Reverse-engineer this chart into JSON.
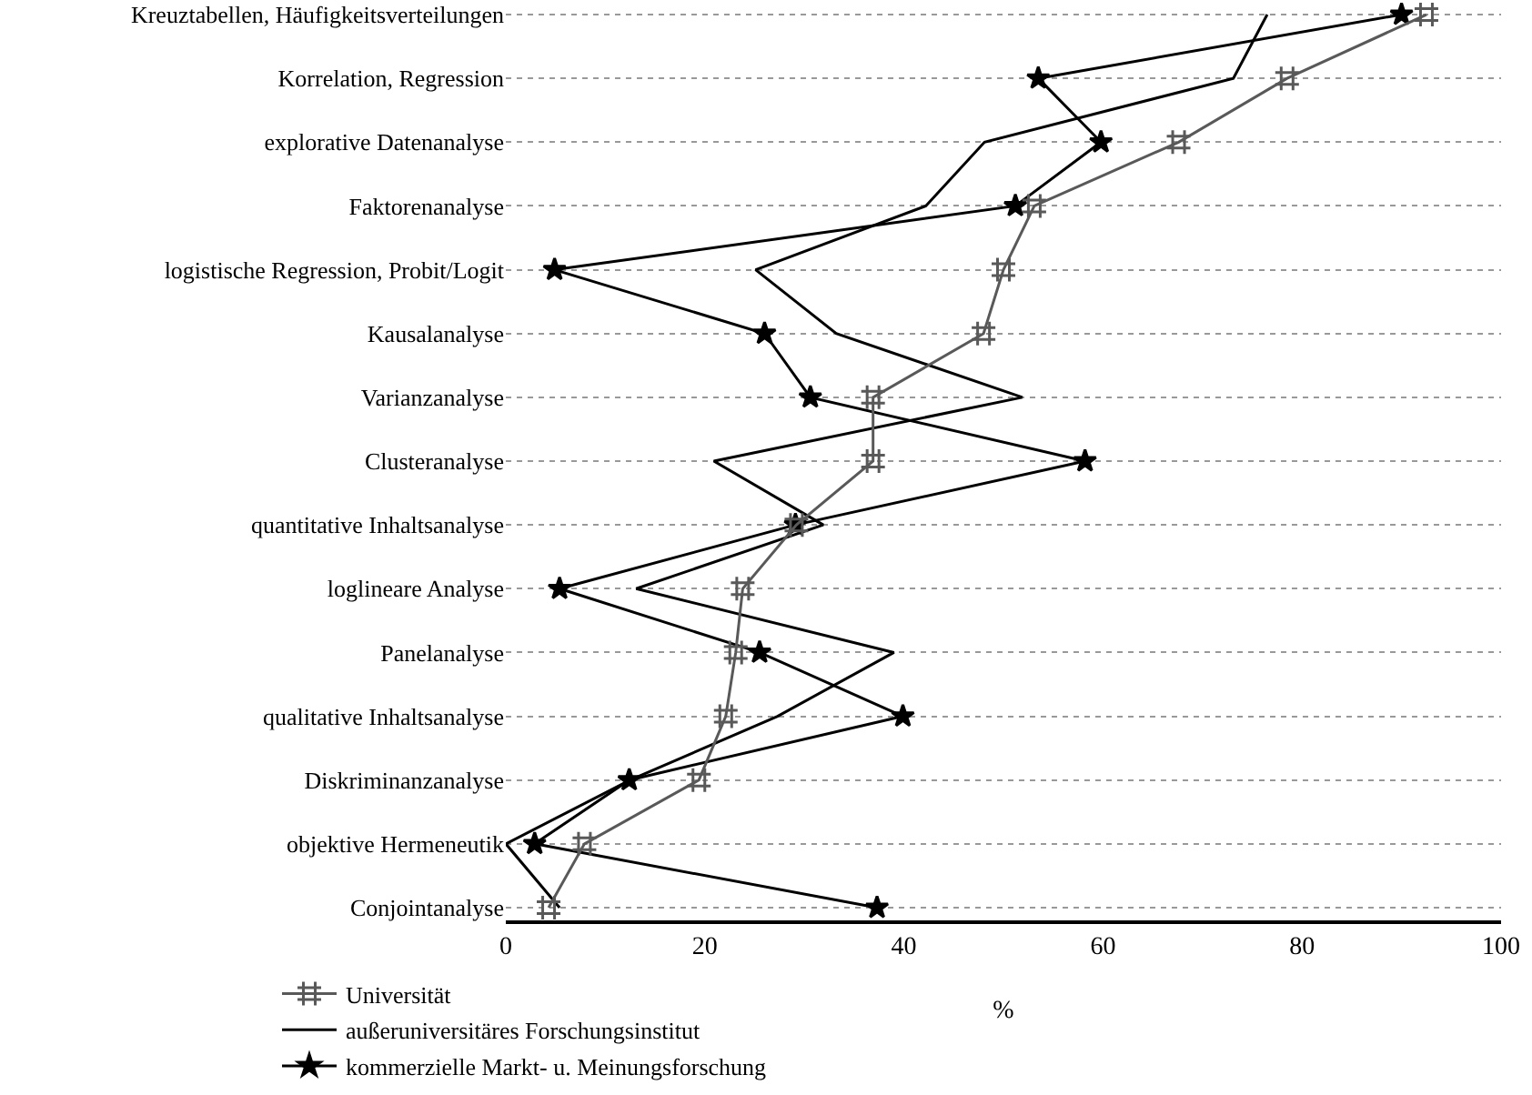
{
  "chart_data": {
    "type": "line",
    "orientation": "horizontal",
    "xlabel": "%",
    "categories": [
      "Kreuztabellen, Häufigkeitsverteilungen",
      "Korrelation, Regression",
      "explorative Datenanalyse",
      "Faktorenanalyse",
      "logistische Regression, Probit/Logit",
      "Kausalanalyse",
      "Varianzanalyse",
      "Clusteranalyse",
      "quantitative Inhaltsanalyse",
      "loglineare Analyse",
      "Panelanalyse",
      "qualitative Inhaltsanalyse",
      "Diskriminanzanalyse",
      "objektive Hermeneutik",
      "Conjointanalyse"
    ],
    "series": [
      {
        "name": "Universität",
        "color": "#595959",
        "marker": "cross",
        "values": [
          92.5,
          78.5,
          67.6,
          53.1,
          50.0,
          48.0,
          36.9,
          36.9,
          29.2,
          23.8,
          23.1,
          22.1,
          19.4,
          7.9,
          4.3
        ]
      },
      {
        "name": "außeruniversitäres Forschungsinstitut",
        "color": "#000000",
        "marker": "none",
        "values": [
          76.5,
          73.1,
          48.1,
          42.2,
          25.1,
          33.2,
          51.9,
          20.9,
          31.9,
          13.1,
          39.0,
          27.3,
          12.5,
          0,
          5.4
        ]
      },
      {
        "name": "kommerzielle Markt- u. Meinungsforschung",
        "color": "#000000",
        "marker": "star",
        "values": [
          90.0,
          53.5,
          59.8,
          51.2,
          4.9,
          26.0,
          30.6,
          58.2,
          29.1,
          5.4,
          25.5,
          39.9,
          12.4,
          2.9,
          37.3
        ]
      }
    ],
    "xlim": [
      0,
      100
    ],
    "xticks": [
      0,
      20,
      40,
      60,
      80,
      100
    ],
    "grid": "y",
    "legend": "bottom left"
  }
}
